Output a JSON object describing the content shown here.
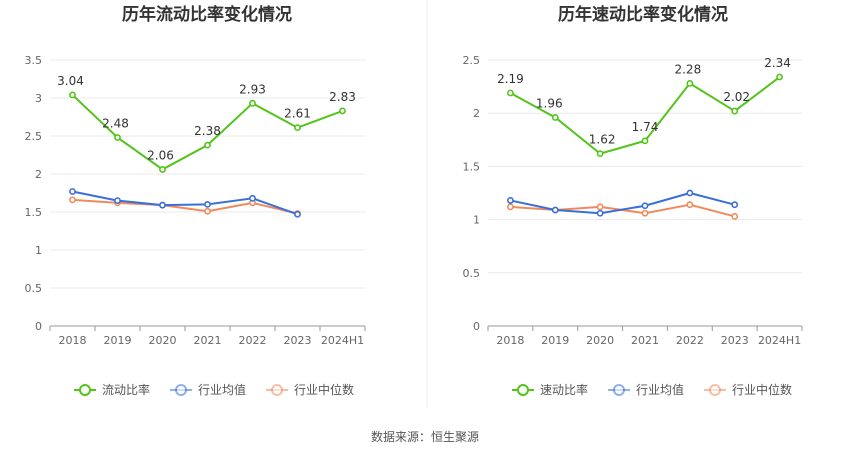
{
  "colors": {
    "primary": "#52c41a",
    "industry_avg": "#3a6fd8",
    "industry_median": "#f08a5d",
    "grid": "#e8e8e8",
    "axis": "#999999"
  },
  "source_text": "数据来源：恒生聚源",
  "chart_data": [
    {
      "type": "line",
      "title": "历年流动比率变化情况",
      "categories": [
        "2018",
        "2019",
        "2020",
        "2021",
        "2022",
        "2023",
        "2024H1"
      ],
      "yticks": [
        "0",
        "0.5",
        "1",
        "1.5",
        "2",
        "2.5",
        "3",
        "3.5"
      ],
      "ylim": [
        0,
        3.5
      ],
      "grid": true,
      "legend_position": "bottom",
      "series": [
        {
          "name": "流动比率",
          "values": [
            3.04,
            2.48,
            2.06,
            2.38,
            2.93,
            2.61,
            2.83
          ],
          "labels": [
            "3.04",
            "2.48",
            "2.06",
            "2.38",
            "2.93",
            "2.61",
            "2.83"
          ]
        },
        {
          "name": "行业均值",
          "values": [
            1.77,
            1.65,
            1.59,
            1.6,
            1.68,
            1.47,
            null
          ]
        },
        {
          "name": "行业中位数",
          "values": [
            1.66,
            1.62,
            1.59,
            1.51,
            1.62,
            1.48,
            null
          ]
        }
      ]
    },
    {
      "type": "line",
      "title": "历年速动比率变化情况",
      "categories": [
        "2018",
        "2019",
        "2020",
        "2021",
        "2022",
        "2023",
        "2024H1"
      ],
      "yticks": [
        "0",
        "0.5",
        "1",
        "1.5",
        "2",
        "2.5"
      ],
      "ylim": [
        0,
        2.5
      ],
      "grid": true,
      "legend_position": "bottom",
      "series": [
        {
          "name": "速动比率",
          "values": [
            2.19,
            1.96,
            1.62,
            1.74,
            2.28,
            2.02,
            2.34
          ],
          "labels": [
            "2.19",
            "1.96",
            "1.62",
            "1.74",
            "2.28",
            "2.02",
            "2.34"
          ]
        },
        {
          "name": "行业均值",
          "values": [
            1.18,
            1.09,
            1.06,
            1.13,
            1.25,
            1.14,
            null
          ]
        },
        {
          "name": "行业中位数",
          "values": [
            1.12,
            1.09,
            1.12,
            1.06,
            1.14,
            1.03,
            null
          ]
        }
      ]
    }
  ]
}
